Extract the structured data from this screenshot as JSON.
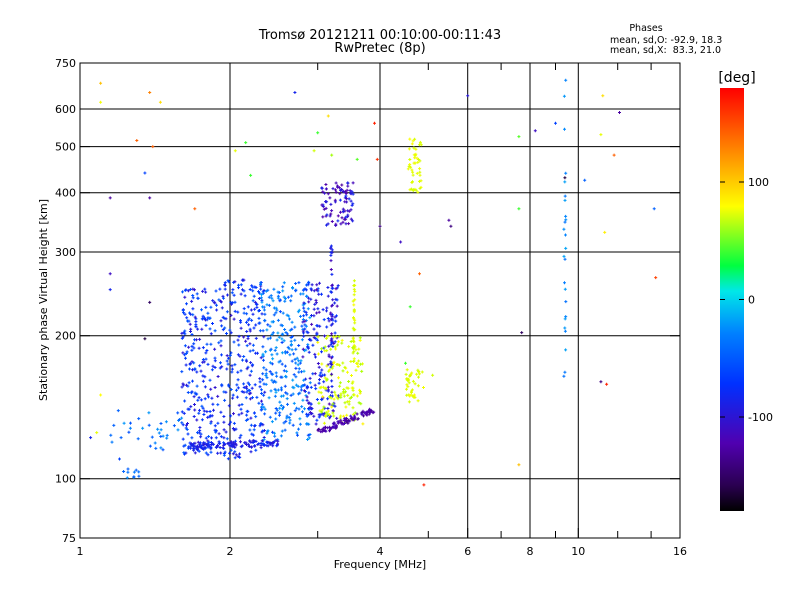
{
  "chart_data": {
    "type": "scatter",
    "title": "Tromsø 20121211 00:10:00-00:11:43",
    "subtitle": "RwPretec (8p)",
    "xlabel": "Frequency [MHz]",
    "ylabel": "Stationary phase Virtual Height [km]",
    "x_scale": "log",
    "y_scale": "log",
    "xlim": [
      1,
      16
    ],
    "ylim": [
      75,
      750
    ],
    "x_ticks": [
      1,
      2,
      4,
      6,
      8,
      10,
      16
    ],
    "x_tick_labels": [
      "1",
      "2",
      "4",
      "6",
      "8",
      "10",
      "16"
    ],
    "y_ticks": [
      75,
      100,
      200,
      300,
      400,
      500,
      600,
      750
    ],
    "y_tick_labels": [
      "75",
      "100",
      "200",
      "300",
      "400",
      "500",
      "600",
      "750"
    ],
    "x_major_gridlines": [
      2,
      4,
      6,
      8,
      10
    ],
    "x_minor_ticks": [
      3,
      5,
      7,
      9,
      12,
      14
    ],
    "y_major_gridlines": [
      100,
      200,
      300,
      400,
      500,
      600
    ],
    "grid": true,
    "stats": {
      "heading": "Phases",
      "line_o": "mean, sd,O: -92.9, 18.3",
      "line_x": "mean, sd,X:  83.3, 21.0"
    },
    "colorbar": {
      "label": "[deg]",
      "range": [
        -180,
        180
      ],
      "ticks": [
        100,
        0,
        -100
      ],
      "tick_labels": [
        "100",
        "0",
        "-100"
      ]
    },
    "echoes": {
      "clusters": [
        {
          "fmin": 1.6,
          "fmax": 1.95,
          "hmin": 112,
          "hmax": 252,
          "phase_min": -118,
          "phase_max": -92,
          "count": 260
        },
        {
          "fmin": 1.95,
          "fmax": 2.35,
          "hmin": 110,
          "hmax": 262,
          "phase_min": -118,
          "phase_max": -92,
          "count": 240
        },
        {
          "fmin": 2.3,
          "fmax": 2.9,
          "hmin": 120,
          "hmax": 260,
          "phase_min": -100,
          "phase_max": -65,
          "count": 280
        },
        {
          "fmin": 2.8,
          "fmax": 3.3,
          "hmin": 130,
          "hmax": 260,
          "phase_min": -125,
          "phase_max": -100,
          "count": 170
        },
        {
          "fmin": 3.0,
          "fmax": 3.7,
          "hmin": 130,
          "hmax": 200,
          "phase_min": 60,
          "phase_max": 105,
          "count": 140
        },
        {
          "fmin": 3.05,
          "fmax": 3.6,
          "hmin": 340,
          "hmax": 420,
          "phase_min": -130,
          "phase_max": -108,
          "count": 90
        },
        {
          "fmin": 4.5,
          "fmax": 4.9,
          "hmin": 145,
          "hmax": 170,
          "phase_min": 80,
          "phase_max": 100,
          "count": 40
        },
        {
          "fmin": 4.55,
          "fmax": 4.85,
          "hmin": 400,
          "hmax": 520,
          "phase_min": 80,
          "phase_max": 100,
          "count": 45
        },
        {
          "fmin": 1.15,
          "fmax": 1.6,
          "hmin": 115,
          "hmax": 140,
          "phase_min": -95,
          "phase_max": -70,
          "count": 35
        },
        {
          "fmin": 1.22,
          "fmax": 1.32,
          "hmin": 100,
          "hmax": 105,
          "phase_min": -95,
          "phase_max": -75,
          "count": 10
        }
      ],
      "traces": [
        {
          "f0": 1.65,
          "f1": 2.5,
          "h0": 117,
          "h1": 119,
          "phase_min": -118,
          "phase_max": -105,
          "count": 120
        },
        {
          "f0": 3.0,
          "f1": 3.9,
          "h0": 125,
          "h1": 140,
          "phase_min": -135,
          "phase_max": -120,
          "count": 90
        }
      ],
      "columns": [
        {
          "f": 9.4,
          "hmin": 140,
          "hmax": 720,
          "phase": -75,
          "count": 25
        },
        {
          "f": 3.55,
          "hmin": 180,
          "hmax": 265,
          "phase": 88,
          "count": 30
        },
        {
          "f": 3.2,
          "hmin": 150,
          "hmax": 310,
          "phase": -115,
          "count": 40
        }
      ],
      "points": [
        {
          "f": 1.1,
          "h": 680,
          "phase": 120
        },
        {
          "f": 1.1,
          "h": 620,
          "phase": 95
        },
        {
          "f": 1.38,
          "h": 650,
          "phase": 140
        },
        {
          "f": 1.45,
          "h": 620,
          "phase": 110
        },
        {
          "f": 1.3,
          "h": 515,
          "phase": 150
        },
        {
          "f": 1.4,
          "h": 500,
          "phase": 150
        },
        {
          "f": 1.35,
          "h": 440,
          "phase": -100
        },
        {
          "f": 1.15,
          "h": 390,
          "phase": -130
        },
        {
          "f": 1.38,
          "h": 390,
          "phase": -130
        },
        {
          "f": 1.7,
          "h": 370,
          "phase": 150
        },
        {
          "f": 1.15,
          "h": 270,
          "phase": -120
        },
        {
          "f": 1.15,
          "h": 250,
          "phase": -110
        },
        {
          "f": 1.38,
          "h": 235,
          "phase": -150
        },
        {
          "f": 1.35,
          "h": 197,
          "phase": -160
        },
        {
          "f": 1.1,
          "h": 150,
          "phase": 100
        },
        {
          "f": 1.05,
          "h": 122,
          "phase": -110
        },
        {
          "f": 1.08,
          "h": 125,
          "phase": 90
        },
        {
          "f": 1.2,
          "h": 110,
          "phase": -100
        },
        {
          "f": 2.05,
          "h": 490,
          "phase": 90
        },
        {
          "f": 2.15,
          "h": 510,
          "phase": 20
        },
        {
          "f": 2.2,
          "h": 435,
          "phase": 20
        },
        {
          "f": 2.7,
          "h": 650,
          "phase": -110
        },
        {
          "f": 3.0,
          "h": 535,
          "phase": 20
        },
        {
          "f": 3.15,
          "h": 580,
          "phase": 110
        },
        {
          "f": 2.95,
          "h": 490,
          "phase": 80
        },
        {
          "f": 3.2,
          "h": 480,
          "phase": 60
        },
        {
          "f": 3.9,
          "h": 560,
          "phase": 170
        },
        {
          "f": 3.95,
          "h": 470,
          "phase": 165
        },
        {
          "f": 4.0,
          "h": 340,
          "phase": -140
        },
        {
          "f": 3.6,
          "h": 470,
          "phase": 30
        },
        {
          "f": 4.4,
          "h": 315,
          "phase": -120
        },
        {
          "f": 4.8,
          "h": 270,
          "phase": 150
        },
        {
          "f": 4.6,
          "h": 230,
          "phase": 20
        },
        {
          "f": 5.5,
          "h": 350,
          "phase": -130
        },
        {
          "f": 5.55,
          "h": 340,
          "phase": -140
        },
        {
          "f": 6.0,
          "h": 640,
          "phase": -115
        },
        {
          "f": 4.5,
          "h": 175,
          "phase": 20
        },
        {
          "f": 5.1,
          "h": 165,
          "phase": 80
        },
        {
          "f": 4.9,
          "h": 97,
          "phase": 170
        },
        {
          "f": 7.6,
          "h": 525,
          "phase": 30
        },
        {
          "f": 7.6,
          "h": 370,
          "phase": 20
        },
        {
          "f": 7.7,
          "h": 203,
          "phase": -150
        },
        {
          "f": 7.6,
          "h": 107,
          "phase": 120
        },
        {
          "f": 8.2,
          "h": 540,
          "phase": -120
        },
        {
          "f": 9.0,
          "h": 560,
          "phase": -100
        },
        {
          "f": 9.4,
          "h": 430,
          "phase": -160
        },
        {
          "f": 10.3,
          "h": 425,
          "phase": -90
        },
        {
          "f": 11.2,
          "h": 640,
          "phase": 110
        },
        {
          "f": 11.1,
          "h": 530,
          "phase": 90
        },
        {
          "f": 11.3,
          "h": 330,
          "phase": 105
        },
        {
          "f": 11.8,
          "h": 480,
          "phase": 150
        },
        {
          "f": 12.1,
          "h": 590,
          "phase": -130
        },
        {
          "f": 11.1,
          "h": 160,
          "phase": -140
        },
        {
          "f": 11.4,
          "h": 158,
          "phase": 170
        },
        {
          "f": 14.2,
          "h": 370,
          "phase": -90
        },
        {
          "f": 14.3,
          "h": 265,
          "phase": 160
        }
      ]
    }
  }
}
